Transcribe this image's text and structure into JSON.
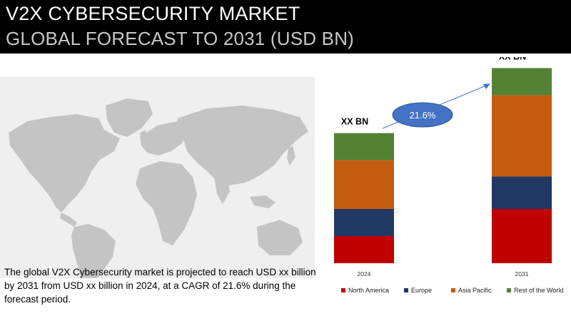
{
  "header": {
    "title": "V2X CYBERSECURITY MARKET",
    "subtitle": "GLOBAL FORECAST TO 2031 (USD BN)"
  },
  "description": "The global V2X Cybersecurity market is projected to reach USD xx billion by 2031 from USD xx billion in 2024, at a CAGR of 21.6% during the forecast period.",
  "colors": {
    "header_bg": "#000000",
    "map_bg": "#efefef",
    "land": "#c4c4c4",
    "cagr_bubble": "#4472c4"
  },
  "chart_data": {
    "type": "bar",
    "stacked": true,
    "categories": [
      "2024",
      "2031"
    ],
    "series": [
      {
        "name": "North America",
        "color": "#c00000",
        "values": [
          1,
          2
        ]
      },
      {
        "name": "Europe",
        "color": "#203864",
        "values": [
          1,
          1.2
        ]
      },
      {
        "name": "Asia Pacific",
        "color": "#c55a11",
        "values": [
          1.8,
          3
        ]
      },
      {
        "name": "Rest of the World",
        "color": "#548235",
        "values": [
          1,
          1
        ]
      }
    ],
    "bar_labels": [
      "XX BN",
      "XX BN"
    ],
    "annotation": "21.6%",
    "grid": false,
    "legend_position": "bottom"
  }
}
